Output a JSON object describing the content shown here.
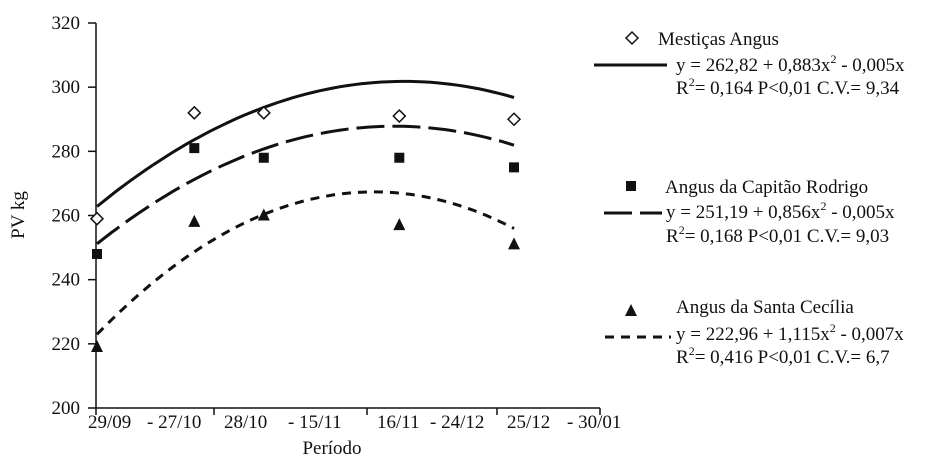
{
  "chart_data": {
    "type": "scatter",
    "ylabel": "PV kg",
    "xlabel": "Período",
    "ylim": [
      200,
      320
    ],
    "yticks": [
      200,
      220,
      240,
      260,
      280,
      300,
      320
    ],
    "categories": [
      "29/09 - 27/10",
      "28/10 - 15/11",
      "16/11 - 24/12",
      "25/12 - 30/01"
    ],
    "xtick_text": {
      "t1": "29/09",
      "t2": "- 27/10",
      "t3": "28/10",
      "t4": "- 15/11",
      "t5": "16/11",
      "t6": "- 24/12",
      "t7": "25/12",
      "t8": "- 30/01"
    },
    "x": [
      0,
      28,
      48,
      87,
      120
    ],
    "series": [
      {
        "name": "Mestiças Angus",
        "marker": "diamond-open",
        "line": "solid",
        "points": [
          [
            0,
            259
          ],
          [
            28,
            292
          ],
          [
            48,
            292
          ],
          [
            87,
            291
          ],
          [
            120,
            290
          ]
        ],
        "fit": {
          "a": 262.82,
          "b": 0.883,
          "c": -0.005
        },
        "equation": "y = 262,82 + 0,883x",
        "equation_tail": " - 0,005x",
        "exponent": "2",
        "r2_prefix": "R",
        "r2_exp": "2",
        "r2_text": "= 0,164 P<0,01 C.V.= 9,34"
      },
      {
        "name": "Angus da Capitão Rodrigo",
        "marker": "square",
        "line": "long-dash",
        "points": [
          [
            0,
            248
          ],
          [
            28,
            281
          ],
          [
            48,
            278
          ],
          [
            87,
            278
          ],
          [
            120,
            275
          ]
        ],
        "fit": {
          "a": 251.19,
          "b": 0.856,
          "c": -0.005
        },
        "equation": "y = 251,19 + 0,856x",
        "equation_tail": " - 0,005x",
        "exponent": "2",
        "r2_prefix": "R",
        "r2_exp": "2",
        "r2_text": "= 0,168 P<0,01 C.V.= 9,03"
      },
      {
        "name": "Angus da Santa Cecília",
        "marker": "triangle",
        "line": "short-dash",
        "points": [
          [
            0,
            219
          ],
          [
            28,
            258
          ],
          [
            48,
            260
          ],
          [
            87,
            257
          ],
          [
            120,
            251
          ]
        ],
        "fit": {
          "a": 222.96,
          "b": 1.115,
          "c": -0.007
        },
        "equation": "y = 222,96 + 1,115x",
        "equation_tail": " - 0,007x",
        "exponent": "2",
        "r2_prefix": "R",
        "r2_exp": "2",
        "r2_text": "= 0,416 P<0,01 C.V.= 6,7"
      }
    ],
    "legend_position": "right",
    "grid": false
  }
}
